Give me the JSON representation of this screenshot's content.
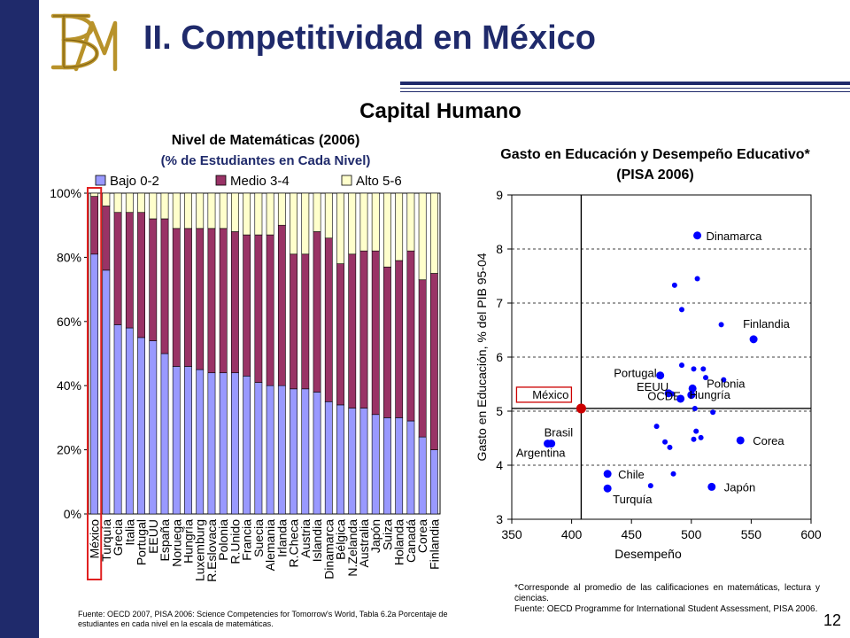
{
  "slide": {
    "title": "II. Competitividad en México",
    "subtitle": "Capital Humano",
    "page_number": "12",
    "brand_color": "#1f2a6b",
    "logo_color": "#b8922a"
  },
  "charts": [
    {
      "title": "Nivel de Matemáticas (2006)",
      "subtitle": "(% de Estudiantes en Cada Nivel)",
      "source": "Fuente: OECD 2007, PISA 2006: Science Competencies for Tomorrow's World, Tabla 6.2a Porcentaje de estudiantes en cada nivel en la escala de matemáticas."
    },
    {
      "title": "Gasto en Educación y Desempeño Educativo* (PISA 2006)",
      "note": "*Corresponde al promedio de las calificaciones en matemáticas, lectura y ciencias.",
      "source": "Fuente: OECD Programme for International Student Assessment, PISA 2006."
    }
  ],
  "chart_data": [
    {
      "type": "bar",
      "stacked": true,
      "categories": [
        "México",
        "Turquía",
        "Grecia",
        "Italia",
        "Portugal",
        "EEUU",
        "España",
        "Noruega",
        "Hungría",
        "Luxemburg",
        "R.Eslovaca",
        "Polonia",
        "R.Unido",
        "Francia",
        "Suecia",
        "Alemania",
        "Irlanda",
        "R.Checa",
        "Austria",
        "Islandia",
        "Dinamarca",
        "Bélgica",
        "N.Zelanda",
        "Australia",
        "Japón",
        "Suiza",
        "Holanda",
        "Canadá",
        "Corea",
        "Finlandia"
      ],
      "series": [
        {
          "name": "Bajo 0-2",
          "color": "#9999ff",
          "values": [
            81,
            76,
            59,
            58,
            55,
            54,
            50,
            46,
            46,
            45,
            44,
            44,
            44,
            43,
            41,
            40,
            40,
            39,
            39,
            38,
            35,
            34,
            33,
            33,
            31,
            30,
            30,
            29,
            24,
            20
          ]
        },
        {
          "name": "Medio 3-4",
          "color": "#993366",
          "values": [
            18,
            20,
            35,
            36,
            39,
            38,
            42,
            43,
            43,
            44,
            45,
            45,
            44,
            44,
            46,
            47,
            50,
            42,
            42,
            50,
            51,
            44,
            48,
            49,
            51,
            47,
            49,
            53,
            49,
            55
          ]
        },
        {
          "name": "Alto 5-6",
          "color": "#ffffcc",
          "values": [
            1,
            4,
            6,
            6,
            6,
            8,
            8,
            11,
            11,
            11,
            11,
            11,
            12,
            13,
            13,
            13,
            10,
            19,
            19,
            12,
            14,
            22,
            19,
            18,
            18,
            23,
            21,
            18,
            27,
            25
          ]
        }
      ],
      "yticks": [
        "0%",
        "20%",
        "40%",
        "60%",
        "80%",
        "100%"
      ],
      "ylim": [
        0,
        100
      ],
      "legend_position": "top",
      "highlight": "México",
      "highlight_color": "#e02020"
    },
    {
      "type": "scatter",
      "xlabel": "Desempeño",
      "ylabel": "Gasto en Educación, % del PIB 95-04",
      "xlim": [
        350,
        600
      ],
      "ylim": [
        3,
        9
      ],
      "xticks": [
        350,
        400,
        450,
        500,
        550,
        600
      ],
      "yticks": [
        3,
        4,
        5,
        6,
        7,
        8,
        9
      ],
      "grid": "horizontal-dashed",
      "reference_lines": {
        "x": 408,
        "y": 5.05
      },
      "point_color": "#0000ff",
      "highlight_color": "#cc0000",
      "points": [
        {
          "x": 505,
          "y": 8.25,
          "label": "Dinamarca",
          "big": true
        },
        {
          "x": 486,
          "y": 7.33
        },
        {
          "x": 505,
          "y": 7.45
        },
        {
          "x": 492,
          "y": 6.88
        },
        {
          "x": 525,
          "y": 6.6
        },
        {
          "x": 552,
          "y": 6.33,
          "label": "Finlandia",
          "big": true
        },
        {
          "x": 492,
          "y": 5.85
        },
        {
          "x": 502,
          "y": 5.78
        },
        {
          "x": 510,
          "y": 5.78
        },
        {
          "x": 512,
          "y": 5.62
        },
        {
          "x": 527,
          "y": 5.58
        },
        {
          "x": 474,
          "y": 5.66,
          "label": "Portugal",
          "big": true
        },
        {
          "x": 501,
          "y": 5.42,
          "label": "Polonia",
          "big": true
        },
        {
          "x": 481,
          "y": 5.33,
          "label": "EEUU",
          "big": true
        },
        {
          "x": 484,
          "y": 5.32
        },
        {
          "x": 500,
          "y": 5.3,
          "label": "OCDE",
          "big": true
        },
        {
          "x": 491,
          "y": 5.23,
          "label": "Hungría",
          "big": true
        },
        {
          "x": 503,
          "y": 5.05
        },
        {
          "x": 518,
          "y": 4.98
        },
        {
          "x": 471,
          "y": 4.72
        },
        {
          "x": 504,
          "y": 4.63
        },
        {
          "x": 508,
          "y": 4.51
        },
        {
          "x": 502,
          "y": 4.48
        },
        {
          "x": 478,
          "y": 4.43
        },
        {
          "x": 482,
          "y": 4.33
        },
        {
          "x": 541,
          "y": 4.46,
          "label": "Corea",
          "big": true
        },
        {
          "x": 380,
          "y": 4.4,
          "label": "Argentina",
          "big": true
        },
        {
          "x": 383,
          "y": 4.4,
          "label": "Brasil",
          "big": true
        },
        {
          "x": 485,
          "y": 3.84
        },
        {
          "x": 430,
          "y": 3.84,
          "label": "Chile",
          "big": true
        },
        {
          "x": 466,
          "y": 3.62
        },
        {
          "x": 517,
          "y": 3.6,
          "label": "Japón",
          "big": true
        },
        {
          "x": 430,
          "y": 3.57,
          "label": "Turquía",
          "big": true
        },
        {
          "x": 408,
          "y": 5.05,
          "label": "México",
          "highlight": true
        }
      ]
    }
  ]
}
